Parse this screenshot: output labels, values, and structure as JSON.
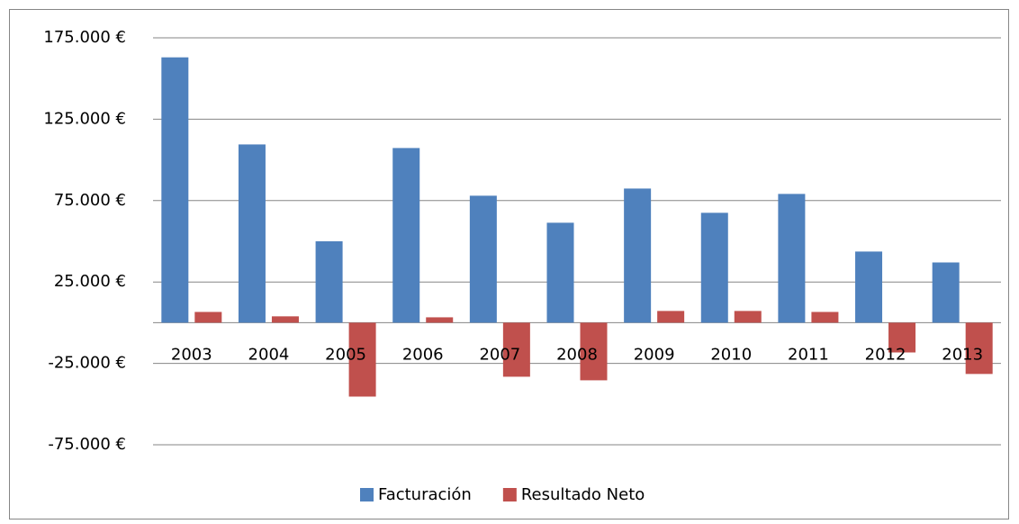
{
  "chart_data": {
    "type": "bar",
    "categories": [
      "2003",
      "2004",
      "2005",
      "2006",
      "2007",
      "2008",
      "2009",
      "2010",
      "2011",
      "2012",
      "2013"
    ],
    "series": [
      {
        "name": "Facturación",
        "color": "#4f81bd",
        "values": [
          163000,
          109500,
          50000,
          107300,
          78000,
          61400,
          82400,
          67500,
          79100,
          43700,
          37000
        ]
      },
      {
        "name": "Resultado Neto",
        "color": "#c0504d",
        "values": [
          6600,
          3900,
          -45400,
          3300,
          -33200,
          -35400,
          7200,
          7200,
          6600,
          -18300,
          -31500
        ]
      }
    ],
    "ylim": [
      -75000,
      175000
    ],
    "yticks": [
      {
        "value": -75000,
        "label": "-75.000 €"
      },
      {
        "value": -25000,
        "label": "-25.000 €"
      },
      {
        "value": 25000,
        "label": "25.000 €"
      },
      {
        "value": 75000,
        "label": "75.000 €"
      },
      {
        "value": 125000,
        "label": "125.000 €"
      },
      {
        "value": 175000,
        "label": "175.000 €"
      }
    ],
    "grid": true,
    "legend": "bottom"
  }
}
